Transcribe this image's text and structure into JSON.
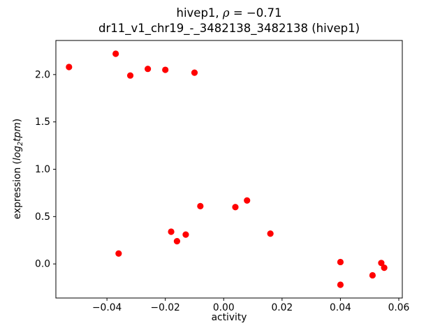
{
  "title": {
    "line1_prefix": "hivep1, ",
    "line1_rho": "ρ",
    "line1_suffix": " = −0.71",
    "line2": "dr11_v1_chr19_-_3482138_3482138 (hivep1)"
  },
  "axes_labels": {
    "xlabel": "activity",
    "ylabel_prefix": "expression (",
    "ylabel_log": "log",
    "ylabel_sub": "2",
    "ylabel_var": "tpm",
    "ylabel_suffix": ")"
  },
  "chart_data": {
    "type": "scatter",
    "marker_color": "#ff0000",
    "axis_color": "#000000",
    "xlim": [
      -0.0575,
      0.0612
    ],
    "ylim": [
      -0.36,
      2.36
    ],
    "xticks": [
      {
        "v": -0.04,
        "label": "−0.04"
      },
      {
        "v": -0.02,
        "label": "−0.02"
      },
      {
        "v": 0.0,
        "label": "0.00"
      },
      {
        "v": 0.02,
        "label": "0.02"
      },
      {
        "v": 0.04,
        "label": "0.04"
      },
      {
        "v": 0.06,
        "label": "0.06"
      }
    ],
    "yticks": [
      {
        "v": 0.0,
        "label": "0.0"
      },
      {
        "v": 0.5,
        "label": "0.5"
      },
      {
        "v": 1.0,
        "label": "1.0"
      },
      {
        "v": 1.5,
        "label": "1.5"
      },
      {
        "v": 2.0,
        "label": "2.0"
      }
    ],
    "points": [
      [
        -0.053,
        2.08
      ],
      [
        -0.037,
        2.22
      ],
      [
        -0.032,
        1.99
      ],
      [
        -0.026,
        2.06
      ],
      [
        -0.02,
        2.05
      ],
      [
        -0.01,
        2.02
      ],
      [
        -0.036,
        0.11
      ],
      [
        -0.018,
        0.34
      ],
      [
        -0.016,
        0.24
      ],
      [
        -0.013,
        0.31
      ],
      [
        -0.008,
        0.61
      ],
      [
        0.004,
        0.6
      ],
      [
        0.008,
        0.67
      ],
      [
        0.016,
        0.32
      ],
      [
        0.04,
        0.02
      ],
      [
        0.04,
        -0.22
      ],
      [
        0.051,
        -0.12
      ],
      [
        0.054,
        0.01
      ],
      [
        0.055,
        -0.04
      ]
    ]
  }
}
